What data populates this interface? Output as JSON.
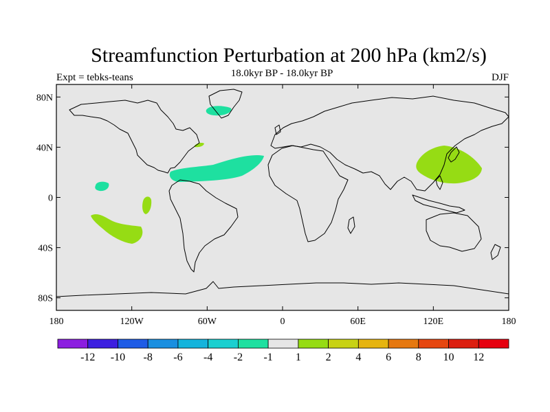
{
  "chart_data": {
    "type": "heatmap",
    "title": "Streamfunction Perturbation at 200 hPa (km2/s)",
    "subtitle": "18.0kyr BP - 18.0kyr BP",
    "left_label": "Expt = tebks-teans",
    "right_label": "DJF",
    "lon_range": [
      -180,
      180
    ],
    "lat_range": [
      -90,
      90
    ],
    "x_ticks": [
      {
        "value": -180,
        "label": "180"
      },
      {
        "value": -120,
        "label": "120W"
      },
      {
        "value": -60,
        "label": "60W"
      },
      {
        "value": 0,
        "label": "0"
      },
      {
        "value": 60,
        "label": "60E"
      },
      {
        "value": 120,
        "label": "120E"
      },
      {
        "value": 180,
        "label": "180"
      }
    ],
    "y_ticks": [
      {
        "value": 80,
        "label": "80N"
      },
      {
        "value": 40,
        "label": "40N"
      },
      {
        "value": 0,
        "label": "0"
      },
      {
        "value": -40,
        "label": "40S"
      },
      {
        "value": -80,
        "label": "80S"
      }
    ],
    "colorbar": {
      "colors": [
        "#8c1ee0",
        "#3d1fe0",
        "#1e5ce6",
        "#1a8fe0",
        "#14b4dc",
        "#1ad0d0",
        "#1ee0a0",
        "#e6e6e6",
        "#96dc14",
        "#c8d214",
        "#e6b40f",
        "#e6780f",
        "#e6460f",
        "#dc1e0f",
        "#e6000f"
      ],
      "labels": [
        "-12",
        "-10",
        "-8",
        "-6",
        "-4",
        "-2",
        "-1",
        "1",
        "2",
        "4",
        "6",
        "8",
        "10",
        "12"
      ]
    },
    "anomalies": [
      {
        "name": "north-atlantic-negative",
        "level": -1,
        "color": "#1ee0a0",
        "lon": -40,
        "lat": 20
      },
      {
        "name": "greenland-negative",
        "level": -1,
        "color": "#1ee0a0",
        "lon": -50,
        "lat": 70
      },
      {
        "name": "hawaii-negative",
        "level": -1,
        "color": "#1ee0a0",
        "lon": -150,
        "lat": 12
      },
      {
        "name": "nw-atlantic-positive",
        "level": 1,
        "color": "#96dc14",
        "lon": -62,
        "lat": 42
      },
      {
        "name": "east-pacific-positive",
        "level": 1,
        "color": "#96dc14",
        "lon": -108,
        "lat": -8
      },
      {
        "name": "south-pacific-positive",
        "level": 1,
        "color": "#96dc14",
        "lon": -150,
        "lat": -27
      },
      {
        "name": "west-pacific-positive",
        "level": 1,
        "color": "#96dc14",
        "lon": 130,
        "lat": 25
      }
    ]
  }
}
